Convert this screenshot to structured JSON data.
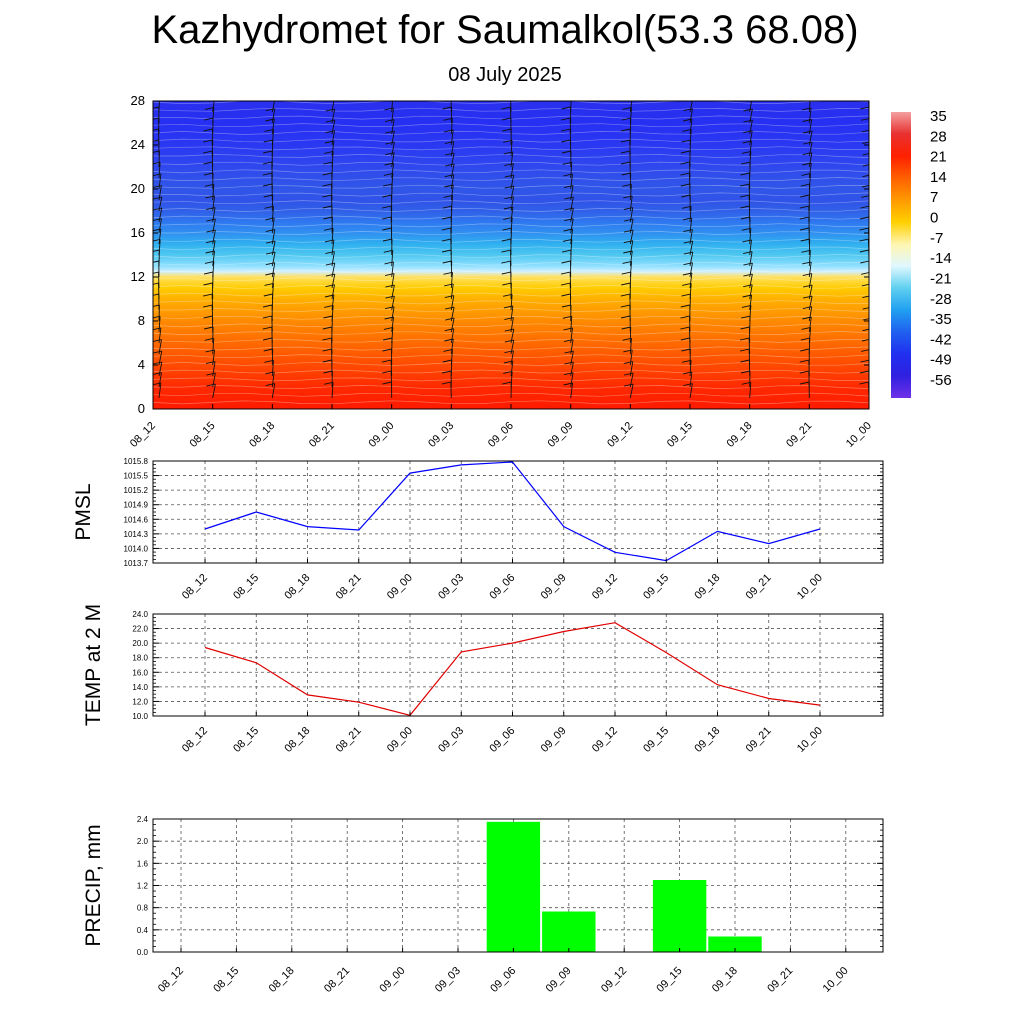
{
  "title": "Kazhydromet for Saumalkol(53.3 68.08)",
  "subtitle": "08 July 2025",
  "colors": {
    "pmsl_line": "#0000ff",
    "temp_line": "#e00000",
    "precip_bar": "#00ff00",
    "grid": "#555555"
  },
  "chart_data": [
    {
      "type": "heatmap",
      "name": "cross-section",
      "x": [
        "08_12",
        "08_15",
        "08_18",
        "08_21",
        "09_00",
        "09_03",
        "09_06",
        "09_09",
        "09_12",
        "09_15",
        "09_18",
        "09_21",
        "10_00"
      ],
      "y_ticks": [
        0,
        4,
        8,
        12,
        16,
        20,
        24,
        28
      ],
      "ylim": [
        0,
        28
      ],
      "colorbar_labels": [
        "35",
        "28",
        "21",
        "14",
        "7",
        "0",
        "-7",
        "-14",
        "-21",
        "-28",
        "-35",
        "-42",
        "-49",
        "-56"
      ],
      "colorbar_stops": [
        "#f4a0a0",
        "#e83030",
        "#ff2000",
        "#ff6000",
        "#ff9a00",
        "#ffd000",
        "#fff5b0",
        "#e0f8ff",
        "#60d0f0",
        "#20a0f0",
        "#2060f0",
        "#2030f0",
        "#3020e0",
        "#7030e8"
      ],
      "profile": {
        "levels": [
          0,
          2,
          4,
          6,
          8,
          10,
          11,
          12,
          12.5,
          13,
          14,
          15,
          16,
          17,
          18,
          19,
          20,
          21,
          22,
          24,
          26,
          28
        ],
        "colors": [
          "#ff1a00",
          "#ff2a00",
          "#ff4a00",
          "#ff6a00",
          "#ff8a00",
          "#ffb000",
          "#ffcc00",
          "#ffe060",
          "#d0f0ff",
          "#90e0ff",
          "#50c8f0",
          "#30b0f0",
          "#3090f0",
          "#2f78f0",
          "#3060e8",
          "#3052e8",
          "#3056e8",
          "#3050ea",
          "#2f48ee",
          "#2a38f2",
          "#2630f2",
          "#2a30ee"
        ]
      },
      "wind_barbs": "dense barbs at every time step across all heights"
    },
    {
      "type": "line",
      "name": "pmsl",
      "ylabel": "PMSL",
      "x": [
        "08_12",
        "08_15",
        "08_18",
        "08_21",
        "09_00",
        "09_03",
        "09_06",
        "09_09",
        "09_12",
        "09_15",
        "09_18",
        "09_21",
        "10_00"
      ],
      "values": [
        1014.4,
        1014.75,
        1014.45,
        1014.38,
        1015.55,
        1015.72,
        1015.78,
        1014.45,
        1013.92,
        1013.75,
        1014.35,
        1014.1,
        1014.4
      ],
      "ylim": [
        1013.7,
        1015.8
      ],
      "yticks": [
        "1013.7",
        "1014.0",
        "1014.3",
        "1014.6",
        "1014.9",
        "1015.2",
        "1015.5",
        "1015.8"
      ],
      "ytick_values": [
        1013.7,
        1014.0,
        1014.3,
        1014.6,
        1014.9,
        1015.2,
        1015.5,
        1015.8
      ],
      "grid": true
    },
    {
      "type": "line",
      "name": "temp",
      "ylabel": "TEMP at 2 M",
      "x": [
        "08_12",
        "08_15",
        "08_18",
        "08_21",
        "09_00",
        "09_03",
        "09_06",
        "09_09",
        "09_12",
        "09_15",
        "09_18",
        "09_21",
        "10_00"
      ],
      "values": [
        19.4,
        17.3,
        12.9,
        11.9,
        10.1,
        18.8,
        20.0,
        21.6,
        22.8,
        18.7,
        14.3,
        12.4,
        11.5
      ],
      "ylim": [
        10.0,
        24.0
      ],
      "yticks": [
        "10.0",
        "12.0",
        "14.0",
        "16.0",
        "18.0",
        "20.0",
        "22.0",
        "24.0"
      ],
      "ytick_values": [
        10,
        12,
        14,
        16,
        18,
        20,
        22,
        24
      ],
      "grid": true
    },
    {
      "type": "bar",
      "name": "precip",
      "ylabel": "PRECIP, mm",
      "x": [
        "08_12",
        "08_15",
        "08_18",
        "08_21",
        "09_00",
        "09_03",
        "09_06",
        "09_09",
        "09_12",
        "09_15",
        "09_18",
        "09_21",
        "10_00"
      ],
      "values": [
        0,
        0,
        0,
        0,
        0,
        0,
        2.35,
        0.73,
        0,
        1.3,
        0.28,
        0,
        0
      ],
      "ylim": [
        0,
        2.4
      ],
      "yticks": [
        "0.0",
        "0.4",
        "0.8",
        "1.2",
        "1.6",
        "2.0",
        "2.4"
      ],
      "ytick_values": [
        0,
        0.4,
        0.8,
        1.2,
        1.6,
        2.0,
        2.4
      ],
      "grid": true
    }
  ]
}
